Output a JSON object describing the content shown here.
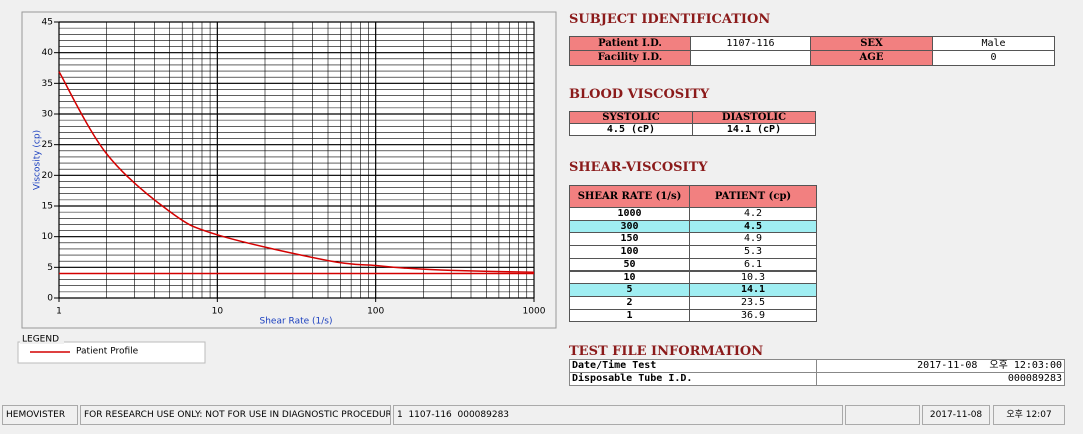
{
  "chart_data": {
    "type": "line",
    "x_label": "Shear Rate (1/s)",
    "y_label": "Viscosity (cp)",
    "x": [
      1,
      2,
      5,
      10,
      50,
      100,
      150,
      300,
      1000
    ],
    "series": [
      {
        "name": "Patient Profile",
        "color": "#d40000",
        "values": [
          36.9,
          23.5,
          14.1,
          10.3,
          6.1,
          5.3,
          4.9,
          4.5,
          4.2
        ]
      }
    ],
    "reference_value": 4,
    "reference_color": "#d40000",
    "xlim": [
      1,
      1000
    ],
    "xticks": [
      1,
      10,
      100,
      1000
    ],
    "xscale": "log",
    "ylim": [
      0,
      45
    ],
    "yticks": [
      0,
      5,
      10,
      15,
      20,
      25,
      30,
      35,
      40,
      45
    ],
    "grid": true,
    "legend_title": "LEGEND"
  },
  "subject": {
    "title": "SUBJECT IDENTIFICATION",
    "patient_label": "Patient I.D.",
    "patient_id": "1107-116",
    "sex_label": "SEX",
    "sex": "Male",
    "facility_label": "Facility I.D.",
    "age_label": "AGE",
    "age": "0"
  },
  "blood_viscosity": {
    "title": "BLOOD VISCOSITY",
    "headers": [
      "SYSTOLIC",
      "DIASTOLIC"
    ],
    "values": [
      "4.5 (cP)",
      "14.1 (cP)"
    ]
  },
  "shear_viscosity": {
    "title": "SHEAR-VISCOSITY",
    "headers": [
      "SHEAR RATE (1/s)",
      "PATIENT (cp)"
    ],
    "rows": [
      [
        "1000",
        "4.2"
      ],
      [
        "300",
        "4.5"
      ],
      [
        "150",
        "4.9"
      ],
      [
        "100",
        "5.3"
      ],
      [
        "50",
        "6.1"
      ],
      [
        "10",
        "10.3"
      ],
      [
        "5",
        "14.1"
      ],
      [
        "2",
        "23.5"
      ],
      [
        "1",
        "36.9"
      ]
    ],
    "highlighted_rows": [
      1,
      6
    ]
  },
  "test_file": {
    "title": "TEST FILE INFORMATION",
    "rows": [
      [
        "Date/Time Test",
        "2017-11-08  오후 12:03:00"
      ],
      [
        "Disposable Tube I.D.",
        "000089283"
      ]
    ]
  },
  "status_bar": [
    "HEMOVISTER",
    "FOR RESEARCH USE ONLY: NOT FOR USE IN DIAGNOSTIC PROCEDURES",
    "1  1107-116  000089283",
    "2017-11-08",
    "오후 12:07"
  ]
}
